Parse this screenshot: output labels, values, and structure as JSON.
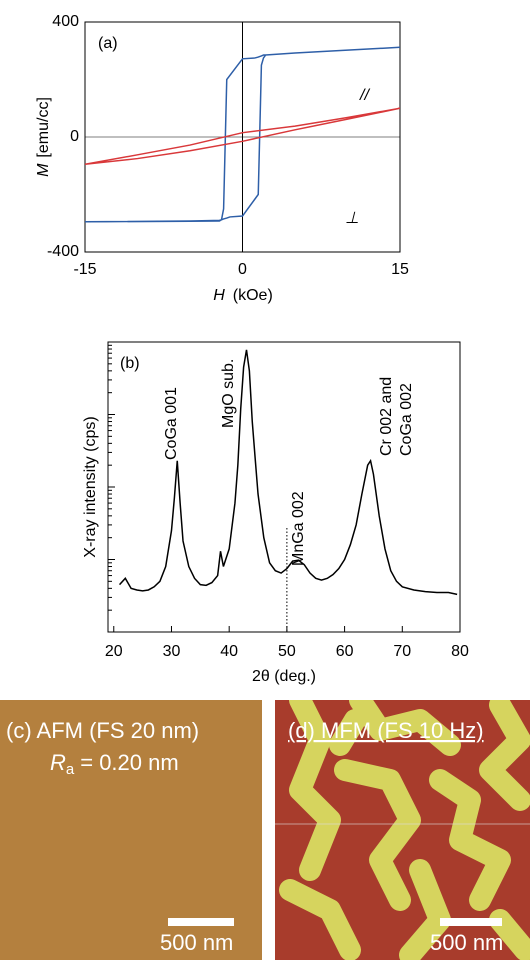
{
  "chart_data": [
    {
      "type": "line",
      "panel_label": "(a)",
      "ylabel_symbol": "M",
      "ylabel": "[emu/cc]",
      "xlabel_symbol": "H",
      "xlabel": "(kOe)",
      "xlim": [
        -15,
        15
      ],
      "xticks": [
        -15,
        0,
        15
      ],
      "ylim": [
        -400,
        400
      ],
      "yticks": [
        -400,
        0,
        400
      ],
      "series": [
        {
          "name": "⊥",
          "color": "#2e5fa8",
          "x": [
            -15,
            -5,
            -2.2,
            -2,
            -1.8,
            -1.5,
            0,
            1.2,
            1.5,
            1.8,
            2,
            2.2,
            5,
            10,
            15,
            10,
            5,
            2.2,
            2,
            1.8,
            1.5,
            0,
            -1.2,
            -1.5,
            -1.8,
            -2,
            -2.2,
            -5,
            -15
          ],
          "values": [
            -295,
            -293,
            -292,
            -288,
            -250,
            200,
            272,
            275,
            278,
            282,
            285,
            285,
            292,
            302,
            312,
            302,
            292,
            285,
            275,
            250,
            -200,
            -275,
            -278,
            -282,
            -285,
            -288,
            -290,
            -292,
            -295
          ]
        },
        {
          "name": "//",
          "color": "#d9383a",
          "x": [
            -15,
            -10,
            -5,
            0,
            5,
            10,
            15,
            10,
            5,
            0,
            -5,
            -10,
            -15
          ],
          "values": [
            -95,
            -75,
            -48,
            -15,
            25,
            62,
            100,
            68,
            38,
            15,
            -28,
            -62,
            -95
          ]
        }
      ]
    },
    {
      "type": "line",
      "panel_label": "(b)",
      "ylabel": "X-ray intensity (cps)",
      "xlabel": "2θ (deg.)",
      "log_y": true,
      "xlim": [
        19,
        80
      ],
      "xticks": [
        20,
        30,
        40,
        50,
        60,
        70,
        80
      ],
      "ylim": [
        10,
        100000
      ],
      "vline": 50,
      "annotations": [
        "CoGa 001",
        "MgO sub.",
        "MnGa 002",
        "Cr 002 and",
        "CoGa 002"
      ],
      "series": [
        {
          "color": "#000000",
          "x": [
            21,
            22,
            23,
            24,
            25,
            26,
            27,
            28,
            29,
            30,
            30.5,
            31,
            31.5,
            32,
            33,
            34,
            35,
            36,
            37,
            38,
            38.5,
            39,
            40,
            41,
            41.5,
            42,
            42.5,
            43,
            43.5,
            44,
            44.5,
            45,
            46,
            47,
            48,
            49,
            50,
            51,
            52,
            53,
            54,
            55,
            56,
            57,
            58,
            59,
            60,
            61,
            62,
            63,
            64,
            64.5,
            65,
            66,
            67,
            68,
            69,
            70,
            72,
            74,
            76,
            78,
            79.5
          ],
          "values": [
            45,
            55,
            40,
            38,
            37,
            38,
            42,
            50,
            80,
            250,
            700,
            2300,
            600,
            180,
            80,
            55,
            45,
            44,
            48,
            60,
            130,
            80,
            140,
            600,
            2000,
            12000,
            45000,
            78000,
            40000,
            8000,
            2500,
            800,
            200,
            90,
            70,
            65,
            75,
            95,
            98,
            85,
            65,
            55,
            52,
            55,
            62,
            75,
            100,
            160,
            300,
            800,
            2000,
            2300,
            1500,
            400,
            140,
            70,
            50,
            42,
            38,
            36,
            35,
            35,
            33
          ]
        }
      ]
    }
  ],
  "images": [
    {
      "label": "(c) AFM (FS 20 nm)",
      "roughness_symbol": "R",
      "roughness_sub": "a",
      "roughness_value": "= 0.20 nm",
      "scale": "500 nm"
    },
    {
      "label": "(d) MFM (FS 10 Hz)",
      "scale": "500 nm"
    }
  ]
}
